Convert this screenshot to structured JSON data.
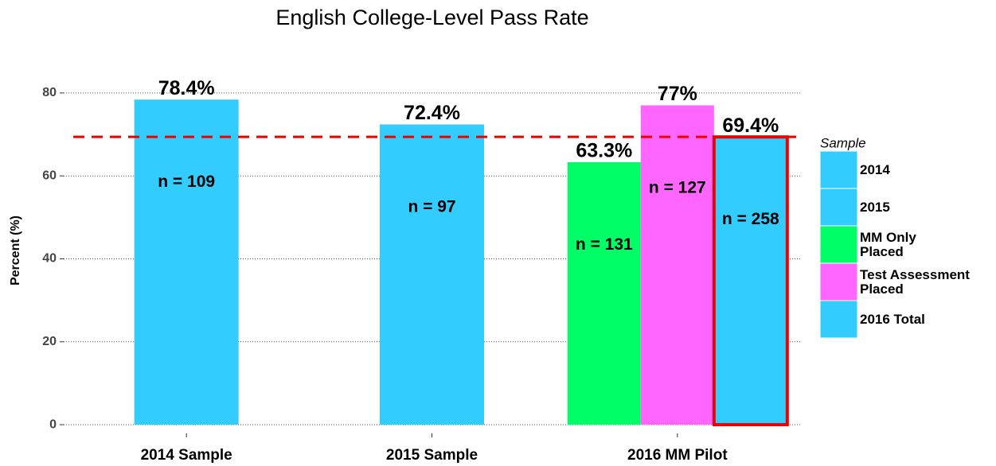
{
  "chart_data": {
    "type": "bar",
    "title": "English College-Level Pass Rate",
    "y_label": "Percent (%)",
    "legend_title": "Sample",
    "legend_position": "right",
    "categories": [
      "2014 Sample",
      "2015 Sample",
      "2016 MM Pilot"
    ],
    "series": [
      {
        "name": "2014",
        "color": "#33ccff",
        "values": [
          78.4,
          null,
          null
        ],
        "value_labels": [
          "78.4%",
          null,
          null
        ],
        "n_labels": [
          "n = 109",
          null,
          null
        ]
      },
      {
        "name": "2015",
        "color": "#33ccff",
        "values": [
          null,
          72.4,
          null
        ],
        "value_labels": [
          null,
          "72.4%",
          null
        ],
        "n_labels": [
          null,
          "n = 97",
          null
        ]
      },
      {
        "name": "MM Only\nPlaced",
        "color": "#00ff66",
        "values": [
          null,
          null,
          63.3
        ],
        "value_labels": [
          null,
          null,
          "63.3%"
        ],
        "n_labels": [
          null,
          null,
          "n = 131"
        ]
      },
      {
        "name": "Test Assessment\nPlaced",
        "color": "#ff66ff",
        "values": [
          null,
          null,
          77
        ],
        "value_labels": [
          null,
          null,
          "77%"
        ],
        "n_labels": [
          null,
          null,
          "n = 127"
        ]
      },
      {
        "name": "2016 Total",
        "color": "#33ccff",
        "outline": "#ee0000",
        "values": [
          null,
          null,
          69.4
        ],
        "value_labels": [
          null,
          null,
          "69.4%"
        ],
        "n_labels": [
          null,
          null,
          "n = 258"
        ]
      }
    ],
    "reference_line": {
      "value": 69.4,
      "color": "#ee0000"
    },
    "ylim": [
      -2.1,
      84.2
    ],
    "yticks": [
      0,
      20,
      40,
      60,
      80
    ],
    "grid": true
  }
}
